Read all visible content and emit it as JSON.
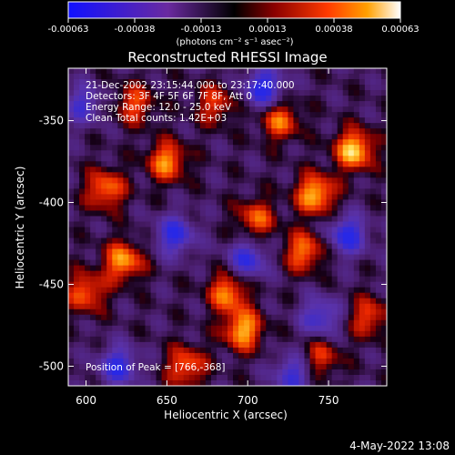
{
  "colorbar": {
    "ticks": [
      "-0.00063",
      "-0.00038",
      "-0.00013",
      "0.00013",
      "0.00038",
      "0.00063"
    ],
    "unit_label": "(photons cm⁻² s⁻¹ asec⁻²)",
    "colors": [
      "#1010ff",
      "#6a2aa0",
      "#000000",
      "#8a0000",
      "#ff3a00",
      "#ffa000",
      "#ffffff"
    ]
  },
  "chart_data": {
    "type": "heatmap",
    "title": "Reconstructed RHESSI Image",
    "xlabel": "Heliocentric X (arcsec)",
    "ylabel": "Heliocentric Y (arcsec)",
    "xlim": [
      589,
      786
    ],
    "ylim": [
      -512,
      -318
    ],
    "xticks": [
      "600",
      "650",
      "700",
      "750"
    ],
    "xtick_values": [
      600,
      650,
      700,
      750
    ],
    "yticks": [
      "-350",
      "-400",
      "-450",
      "-500"
    ],
    "ytick_values": [
      -350,
      -400,
      -450,
      -500
    ],
    "annotations": [
      "21-Dec-2002 23:15:44.000 to 23:17:40.000",
      "Detectors: 3F 4F 5F 6F 7F 8F, Att 0",
      "Energy Range: 12.0 - 25.0 keV",
      "Clean    Total counts: 1.42E+03"
    ],
    "peak_label": "Position of Peak = [766,-368]",
    "peak": [
      766,
      -368
    ],
    "hotspots": [
      {
        "x": 766,
        "y": -368,
        "v": 1.0
      },
      {
        "x": 742,
        "y": -395,
        "v": 0.95
      },
      {
        "x": 697,
        "y": -478,
        "v": 0.9
      },
      {
        "x": 623,
        "y": -436,
        "v": 0.85
      },
      {
        "x": 688,
        "y": -455,
        "v": 0.8
      },
      {
        "x": 650,
        "y": -375,
        "v": 0.8
      },
      {
        "x": 612,
        "y": -392,
        "v": 0.75
      },
      {
        "x": 735,
        "y": -430,
        "v": 0.75
      },
      {
        "x": 600,
        "y": -455,
        "v": 0.7
      },
      {
        "x": 662,
        "y": -500,
        "v": 0.7
      },
      {
        "x": 720,
        "y": -350,
        "v": 0.7
      },
      {
        "x": 705,
        "y": -410,
        "v": 0.65
      },
      {
        "x": 630,
        "y": -340,
        "v": 0.6
      },
      {
        "x": 775,
        "y": -470,
        "v": 0.6
      },
      {
        "x": 680,
        "y": -340,
        "v": 0.55
      },
      {
        "x": 745,
        "y": -495,
        "v": 0.55
      }
    ],
    "coldspots": [
      {
        "x": 710,
        "y": -330,
        "v": -0.9
      },
      {
        "x": 655,
        "y": -420,
        "v": -0.8
      },
      {
        "x": 700,
        "y": -435,
        "v": -0.75
      },
      {
        "x": 762,
        "y": -420,
        "v": -0.85
      },
      {
        "x": 620,
        "y": -500,
        "v": -0.8
      },
      {
        "x": 745,
        "y": -470,
        "v": -0.7
      },
      {
        "x": 598,
        "y": -340,
        "v": -0.6
      },
      {
        "x": 728,
        "y": -505,
        "v": -0.7
      }
    ]
  },
  "timestamp": "4-May-2022 13:08"
}
